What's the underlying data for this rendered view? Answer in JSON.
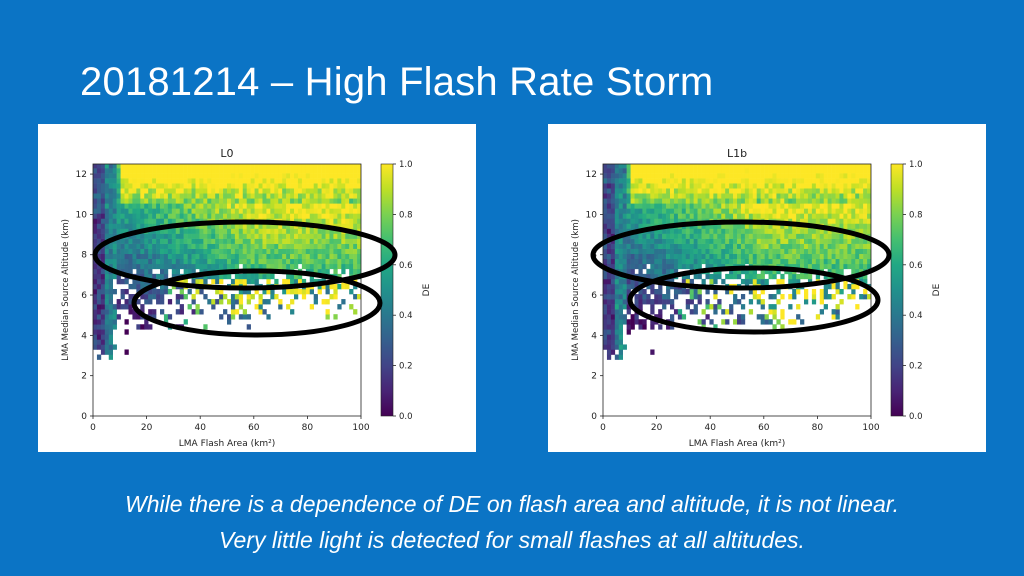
{
  "slide": {
    "title": "20181214 – High Flash Rate Storm",
    "caption_line1": "While there is a dependence of DE on flash area and altitude, it is not linear.",
    "caption_line2": "Very little light is detected for small flashes at all altitudes."
  },
  "colors": {
    "background": "#0b74c5",
    "ellipse": "#000000",
    "colormap": "viridis"
  },
  "chart_data": [
    {
      "type": "heatmap",
      "title": "L0",
      "xlabel": "LMA Flash Area (km²)",
      "ylabel": "LMA Median Source Altitude (km)",
      "colorbar_label": "DE",
      "xlim": [
        0,
        100
      ],
      "ylim": [
        0,
        12.5
      ],
      "clim": [
        0,
        1
      ],
      "x_ticks": [
        "0",
        "20",
        "40",
        "60",
        "80",
        "100"
      ],
      "y_ticks": [
        "0",
        "2",
        "4",
        "6",
        "8",
        "10",
        "12"
      ],
      "cbar_ticks": [
        "0.0",
        "0.2",
        "0.4",
        "0.6",
        "0.8",
        "1.0"
      ],
      "data_altitude_range_km": [
        2.8,
        12.5
      ],
      "annotations": [
        "ellipse around altitude ~8 km",
        "ellipse around altitude ~5.5 km"
      ]
    },
    {
      "type": "heatmap",
      "title": "L1b",
      "xlabel": "LMA Flash Area (km²)",
      "ylabel": "LMA Median Source Altitude (km)",
      "colorbar_label": "DE",
      "xlim": [
        0,
        100
      ],
      "ylim": [
        0,
        12.5
      ],
      "clim": [
        0,
        1
      ],
      "x_ticks": [
        "0",
        "20",
        "40",
        "60",
        "80",
        "100"
      ],
      "y_ticks": [
        "0",
        "2",
        "4",
        "6",
        "8",
        "10",
        "12"
      ],
      "cbar_ticks": [
        "0.0",
        "0.2",
        "0.4",
        "0.6",
        "0.8",
        "1.0"
      ],
      "data_altitude_range_km": [
        2.8,
        12.5
      ],
      "annotations": [
        "ellipse around altitude ~8 km",
        "ellipse around altitude ~5.5 km"
      ]
    }
  ]
}
